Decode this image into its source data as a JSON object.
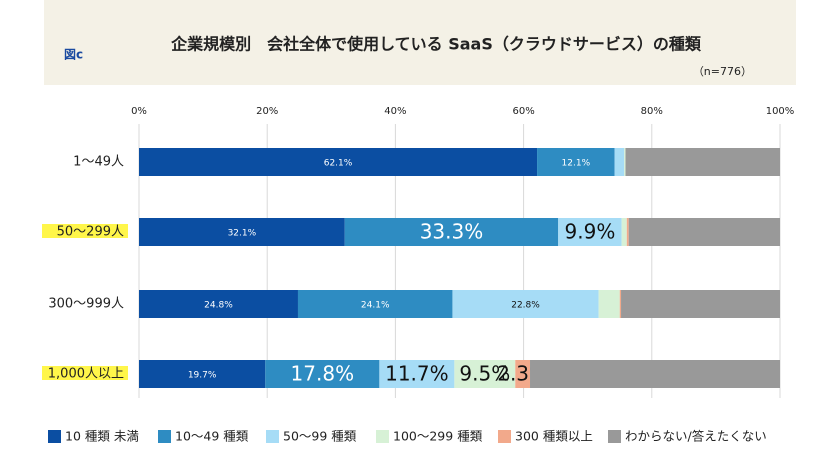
{
  "chart_data": {
    "type": "stacked-bar-horizontal",
    "figure_label": "図c",
    "title": "企業規模別　会社全体で使用している SaaS（クラウドサービス）の種類",
    "subtitle": "（n=776）",
    "categories": [
      "1〜49人",
      "50〜299人",
      "300〜999人",
      "1,000人以上"
    ],
    "highlight": [
      false,
      true,
      false,
      true
    ],
    "xlim": [
      0,
      100
    ],
    "xticks": [
      {
        "value": 0,
        "label": "0%"
      },
      {
        "value": 20,
        "label": "20%"
      },
      {
        "value": 40,
        "label": "40%"
      },
      {
        "value": 60,
        "label": "60%"
      },
      {
        "value": 80,
        "label": "80%"
      },
      {
        "value": 100,
        "label": "100%"
      }
    ],
    "grid": true,
    "legend": "bottom",
    "series": [
      {
        "name": "10 種類 未満",
        "color": "#0b4ea2",
        "values": [
          62.1,
          32.1,
          24.8,
          19.7
        ],
        "value_labels": [
          "62.1%",
          "32.1%",
          "24.8%",
          "19.7%"
        ]
      },
      {
        "name": "10〜49 種類",
        "color": "#2e8cc2",
        "values": [
          12.1,
          33.3,
          24.1,
          17.8
        ],
        "value_labels": [
          "12.1%",
          "33.3%",
          "24.1%",
          "17.8%"
        ]
      },
      {
        "name": "50〜99 種類",
        "color": "#a6dcf6",
        "values": [
          1.5,
          9.9,
          22.8,
          11.7
        ],
        "value_labels": [
          null,
          "9.9%",
          "22.8%",
          "11.7%"
        ]
      },
      {
        "name": "100〜299 種類",
        "color": "#d7f1d6",
        "values": [
          0.2,
          0.8,
          3.3,
          9.5
        ],
        "value_labels": [
          null,
          null,
          null,
          "9.5%"
        ]
      },
      {
        "name": "300 種類以上",
        "color": "#f2a98b",
        "values": [
          0.0,
          0.3,
          0.2,
          2.3
        ],
        "value_labels": [
          null,
          null,
          null,
          "2.3%"
        ]
      },
      {
        "name": "わからない/答えたくない",
        "color": "#999999",
        "values": [
          24.1,
          23.6,
          24.8,
          39.0
        ],
        "value_labels": [
          null,
          null,
          null,
          null
        ]
      }
    ]
  }
}
